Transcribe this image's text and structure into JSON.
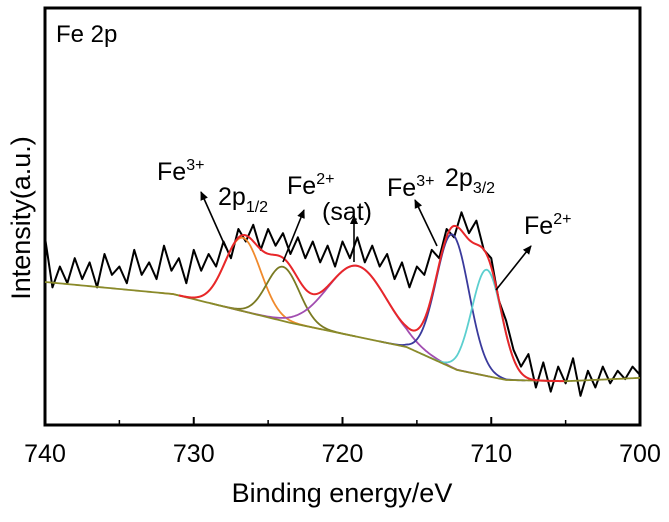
{
  "chart_data": {
    "type": "line",
    "title": "Fe 2p",
    "xlabel": "Binding energy/eV",
    "ylabel": "Intensity(a.u.)",
    "xlim": [
      740,
      700
    ],
    "x_reversed": true,
    "ylim": [
      0,
      100
    ],
    "y_ticks_shown": false,
    "x_ticks": [
      740,
      730,
      720,
      710,
      700
    ],
    "x_tick_labels": [
      "740",
      "730",
      "720",
      "710",
      "700"
    ],
    "grid": false,
    "legend": "none",
    "raw": {
      "color": "#000000",
      "x_start": 740,
      "x_step": -0.5,
      "values": [
        45,
        33,
        38,
        34,
        40,
        35,
        39,
        33,
        41,
        36,
        38,
        34,
        42,
        36,
        39,
        35,
        43,
        37,
        40,
        34,
        42,
        37,
        41,
        38,
        44,
        40,
        47,
        44,
        48,
        42,
        47,
        43,
        46,
        41,
        45,
        40,
        44,
        39,
        43,
        38,
        44,
        40,
        45,
        39,
        43,
        38,
        41,
        35,
        39,
        33,
        38,
        36,
        42,
        40,
        47,
        45,
        51,
        46,
        49,
        42,
        40,
        30,
        25,
        18,
        14,
        17,
        9,
        15,
        8,
        14,
        10,
        16,
        7,
        13,
        9,
        14,
        10,
        13,
        11,
        14,
        12
      ]
    },
    "background": {
      "color": "#8a8a2a",
      "points": [
        [
          740,
          34.3
        ],
        [
          731.4,
          31.4
        ],
        [
          723.5,
          24.5
        ],
        [
          715.7,
          18.7
        ],
        [
          712.3,
          13.2
        ],
        [
          709,
          10.8
        ],
        [
          705,
          10.5
        ],
        [
          700,
          11.3
        ]
      ]
    },
    "envelope_color": "#e8272a",
    "components": [
      {
        "center": 726.7,
        "amplitude": 17.6,
        "sigma": 1.2,
        "color": "#f08a2c"
      },
      {
        "center": 724.0,
        "amplitude": 13.0,
        "sigma": 1.1,
        "color": "#7a7a22"
      },
      {
        "center": 719.0,
        "amplitude": 17.0,
        "sigma": 2.0,
        "color": "#a14db0"
      },
      {
        "center": 712.6,
        "amplitude": 32.0,
        "sigma": 1.1,
        "color": "#3a3a9c"
      },
      {
        "center": 710.3,
        "amplitude": 25.5,
        "sigma": 1.0,
        "color": "#5ccfcf"
      }
    ],
    "annotations": [
      {
        "text": "Fe",
        "sup": "3+",
        "sub": ""
      },
      {
        "text": "2p",
        "sup": "",
        "sub": "1/2"
      },
      {
        "text": "Fe",
        "sup": "2+",
        "sub": ""
      },
      {
        "text": "(sat)",
        "sup": "",
        "sub": ""
      },
      {
        "text": "Fe",
        "sup": "3+",
        "sub": ""
      },
      {
        "text": "2p",
        "sup": "",
        "sub": "3/2"
      },
      {
        "text": "Fe",
        "sup": "2+",
        "sub": ""
      }
    ]
  }
}
